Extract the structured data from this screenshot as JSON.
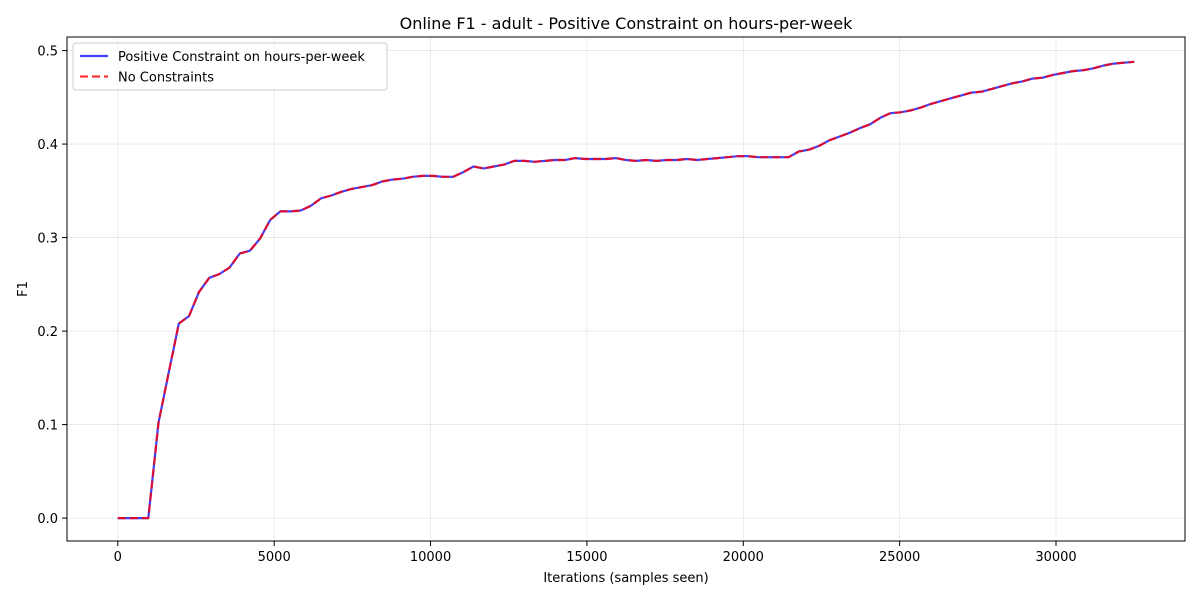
{
  "chart_data": {
    "type": "line",
    "title": "Online F1 - adult - Positive Constraint on hours-per-week",
    "xlabel": "Iterations (samples seen)",
    "ylabel": "F1",
    "xlim": [
      -1625,
      34125
    ],
    "ylim": [
      -0.0245,
      0.5145
    ],
    "xticks": [
      0,
      5000,
      10000,
      15000,
      20000,
      25000,
      30000
    ],
    "xtick_labels": [
      "0",
      "5000",
      "10000",
      "15000",
      "20000",
      "25000",
      "30000"
    ],
    "yticks": [
      0.0,
      0.1,
      0.2,
      0.3,
      0.4,
      0.5
    ],
    "ytick_labels": [
      "0.0",
      "0.1",
      "0.2",
      "0.3",
      "0.4",
      "0.5"
    ],
    "grid": true,
    "legend_position": "top-left",
    "x": [
      0,
      325,
      650,
      975,
      1300,
      1625,
      1950,
      2275,
      2600,
      2925,
      3250,
      3575,
      3900,
      4225,
      4550,
      4875,
      5200,
      5525,
      5850,
      6175,
      6500,
      6825,
      7150,
      7475,
      7800,
      8125,
      8450,
      8775,
      9100,
      9425,
      9750,
      10075,
      10400,
      10725,
      11050,
      11375,
      11700,
      12025,
      12350,
      12675,
      13000,
      13325,
      13650,
      13975,
      14300,
      14625,
      14950,
      15275,
      15600,
      15925,
      16250,
      16575,
      16900,
      17225,
      17550,
      17875,
      18200,
      18525,
      18850,
      19175,
      19500,
      19825,
      20150,
      20475,
      20800,
      21125,
      21450,
      21775,
      22100,
      22425,
      22750,
      23075,
      23400,
      23725,
      24050,
      24375,
      24700,
      25025,
      25350,
      25675,
      26000,
      26325,
      26650,
      26975,
      27300,
      27625,
      27950,
      28275,
      28600,
      28925,
      29250,
      29575,
      29900,
      30225,
      30550,
      30875,
      31200,
      31525,
      31850,
      32175,
      32500
    ],
    "series": [
      {
        "name": "Positive Constraint on hours-per-week",
        "color": "#0000ff",
        "style": "solid",
        "values": [
          0.0,
          0.0,
          0.0,
          0.0,
          0.102,
          0.155,
          0.208,
          0.216,
          0.242,
          0.257,
          0.261,
          0.268,
          0.283,
          0.286,
          0.299,
          0.319,
          0.328,
          0.328,
          0.329,
          0.334,
          0.342,
          0.345,
          0.349,
          0.352,
          0.354,
          0.356,
          0.36,
          0.362,
          0.363,
          0.365,
          0.366,
          0.366,
          0.365,
          0.365,
          0.37,
          0.376,
          0.374,
          0.376,
          0.378,
          0.382,
          0.382,
          0.381,
          0.382,
          0.383,
          0.383,
          0.385,
          0.384,
          0.384,
          0.384,
          0.385,
          0.383,
          0.382,
          0.383,
          0.382,
          0.383,
          0.383,
          0.384,
          0.383,
          0.384,
          0.385,
          0.386,
          0.387,
          0.387,
          0.386,
          0.386,
          0.386,
          0.386,
          0.392,
          0.394,
          0.398,
          0.404,
          0.408,
          0.412,
          0.417,
          0.421,
          0.428,
          0.433,
          0.434,
          0.436,
          0.439,
          0.443,
          0.446,
          0.449,
          0.452,
          0.455,
          0.456,
          0.459,
          0.462,
          0.465,
          0.467,
          0.47,
          0.471,
          0.474,
          0.476,
          0.478,
          0.479,
          0.481,
          0.484,
          0.486,
          0.487,
          0.488
        ]
      },
      {
        "name": "No Constraints",
        "color": "#ff0000",
        "style": "dashed",
        "values": [
          0.0,
          0.0,
          0.0,
          0.0,
          0.102,
          0.155,
          0.208,
          0.216,
          0.242,
          0.257,
          0.261,
          0.268,
          0.283,
          0.286,
          0.299,
          0.319,
          0.328,
          0.328,
          0.329,
          0.334,
          0.342,
          0.345,
          0.349,
          0.352,
          0.354,
          0.356,
          0.36,
          0.362,
          0.363,
          0.365,
          0.366,
          0.366,
          0.365,
          0.365,
          0.37,
          0.376,
          0.374,
          0.376,
          0.378,
          0.382,
          0.382,
          0.381,
          0.382,
          0.383,
          0.383,
          0.385,
          0.384,
          0.384,
          0.384,
          0.385,
          0.383,
          0.382,
          0.383,
          0.382,
          0.383,
          0.383,
          0.384,
          0.383,
          0.384,
          0.385,
          0.386,
          0.387,
          0.387,
          0.386,
          0.386,
          0.386,
          0.386,
          0.392,
          0.394,
          0.398,
          0.404,
          0.408,
          0.412,
          0.417,
          0.421,
          0.428,
          0.433,
          0.434,
          0.436,
          0.439,
          0.443,
          0.446,
          0.449,
          0.452,
          0.455,
          0.456,
          0.459,
          0.462,
          0.465,
          0.467,
          0.47,
          0.471,
          0.474,
          0.476,
          0.478,
          0.479,
          0.481,
          0.484,
          0.486,
          0.487,
          0.488
        ]
      }
    ]
  }
}
